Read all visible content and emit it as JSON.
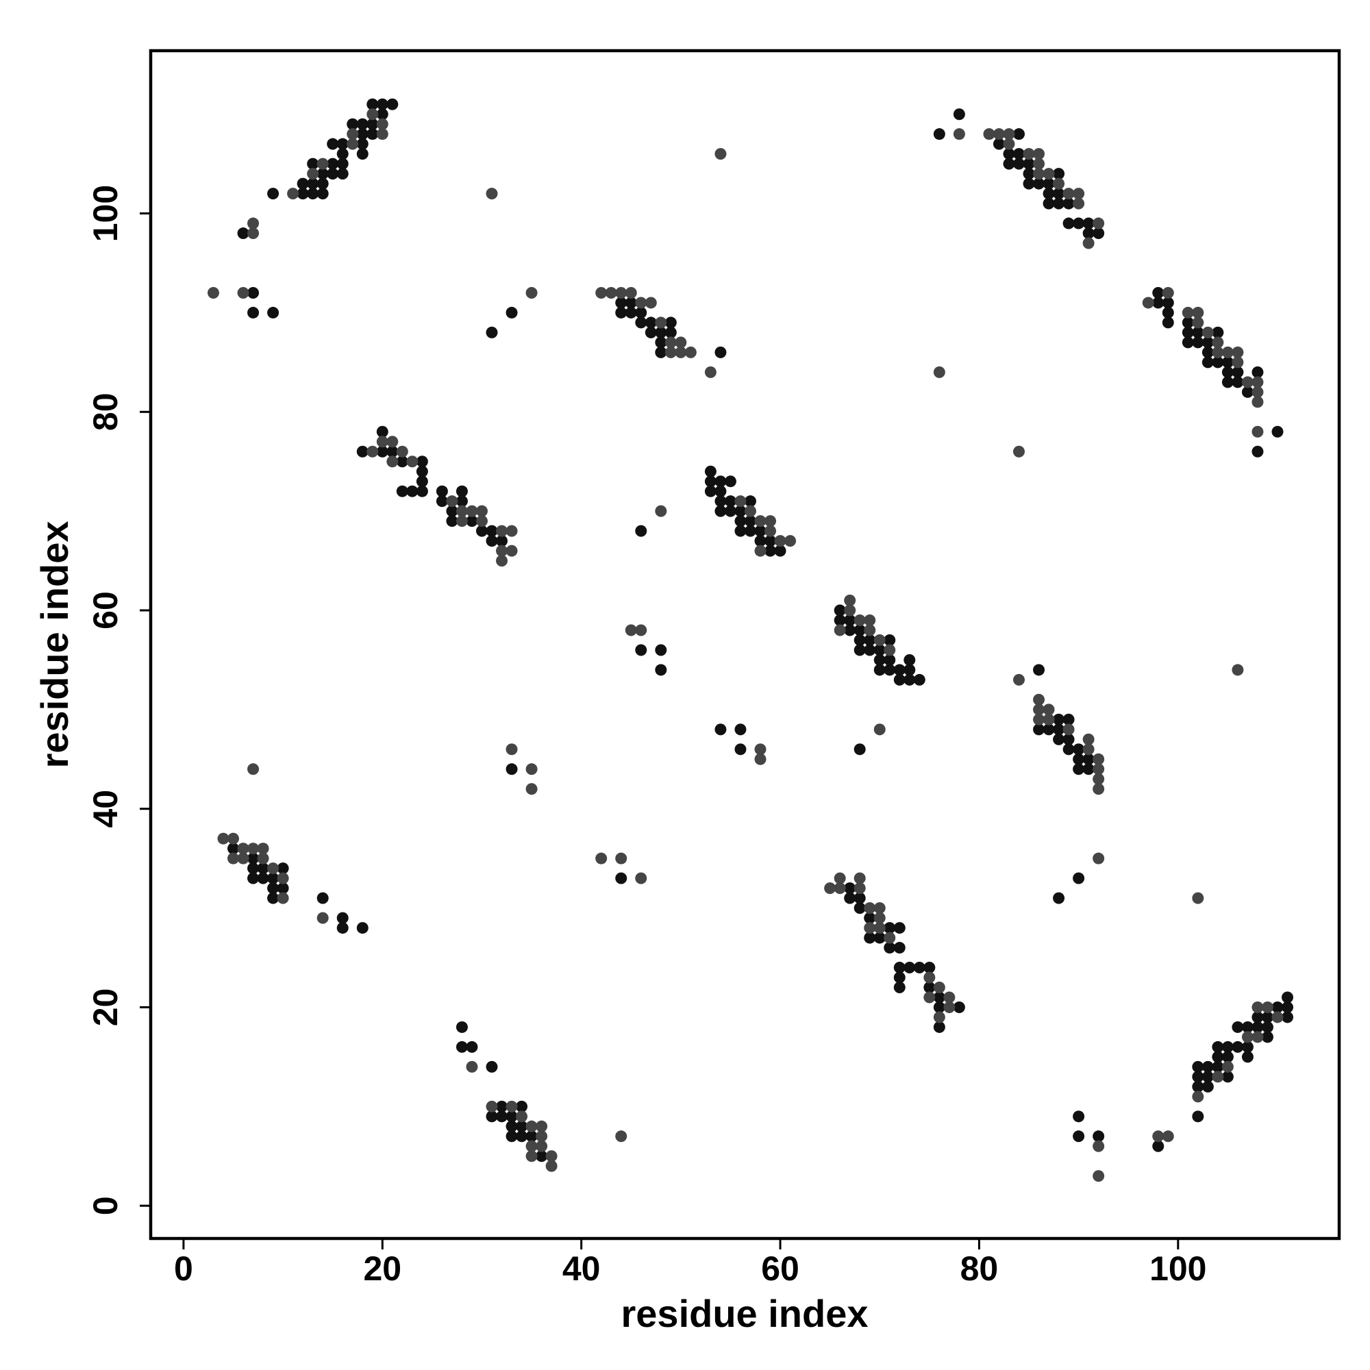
{
  "chart_data": {
    "type": "scatter",
    "xlabel": "residue index",
    "ylabel": "residue index",
    "xlim": [
      -3.3,
      116.2
    ],
    "ylim": [
      -3.3,
      116.4
    ],
    "xticks": [
      0,
      20,
      40,
      60,
      80,
      100
    ],
    "yticks": [
      0,
      20,
      40,
      60,
      80,
      100
    ],
    "grid": false,
    "series": [
      {
        "color": "#111111",
        "x": [
          102,
          102,
          102,
          102,
          103,
          103,
          103,
          104,
          104,
          104,
          105,
          105,
          105,
          106,
          106,
          107,
          107,
          107,
          108,
          108,
          109,
          109,
          109,
          110,
          111,
          111,
          111,
          9,
          12,
          13,
          14,
          12,
          13,
          14,
          14,
          15,
          16,
          13,
          15,
          16,
          16,
          18,
          15,
          16,
          18,
          18,
          19,
          17,
          18,
          19,
          20,
          19,
          20,
          21,
          5,
          7,
          7,
          7,
          8,
          8,
          9,
          9,
          9,
          10,
          10,
          14,
          16,
          16,
          18,
          36,
          35,
          34,
          33,
          34,
          33,
          33,
          32,
          31,
          34,
          32,
          31,
          29,
          28,
          28,
          18,
          20,
          20,
          21,
          22,
          22,
          23,
          24,
          24,
          24,
          24,
          26,
          26,
          27,
          27,
          28,
          28,
          29,
          30,
          31,
          31,
          32,
          76,
          78,
          76,
          76,
          75,
          72,
          72,
          75,
          74,
          73,
          72,
          72,
          71,
          70,
          69,
          72,
          71,
          69,
          68,
          68,
          67,
          67,
          44,
          44,
          45,
          45,
          46,
          46,
          47,
          47,
          48,
          48,
          48,
          49,
          49,
          54,
          91,
          90,
          91,
          90,
          90,
          89,
          89,
          88,
          88,
          87,
          86,
          89,
          88,
          86,
          53,
          53,
          53,
          54,
          54,
          54,
          54,
          55,
          55,
          55,
          56,
          56,
          56,
          57,
          57,
          57,
          58,
          58,
          59,
          59,
          60,
          74,
          73,
          72,
          73,
          72,
          71,
          70,
          73,
          71,
          70,
          70,
          69,
          68,
          71,
          69,
          68,
          68,
          67,
          67,
          66,
          66,
          98,
          98,
          99,
          99,
          99,
          101,
          101,
          101,
          102,
          102,
          103,
          103,
          103,
          104,
          104,
          105,
          105,
          105,
          106,
          106,
          107,
          108,
          108,
          110,
          92,
          91,
          91,
          90,
          89,
          89,
          88,
          87,
          88,
          87,
          87,
          86,
          85,
          88,
          85,
          85,
          84,
          83,
          84,
          83,
          82,
          84,
          76,
          78,
          46,
          48,
          48,
          54,
          56,
          56,
          7,
          7,
          9,
          92,
          90,
          90,
          98,
          6,
          31,
          33,
          88,
          90,
          33,
          44,
          46,
          68
        ],
        "values": [
          9,
          12,
          13,
          14,
          12,
          13,
          14,
          14,
          15,
          16,
          13,
          15,
          16,
          16,
          18,
          15,
          16,
          18,
          18,
          19,
          17,
          18,
          19,
          20,
          19,
          20,
          21,
          102,
          102,
          102,
          102,
          103,
          103,
          103,
          104,
          104,
          104,
          105,
          105,
          105,
          106,
          106,
          107,
          107,
          107,
          108,
          108,
          109,
          109,
          109,
          110,
          111,
          111,
          111,
          36,
          35,
          34,
          33,
          34,
          33,
          33,
          32,
          31,
          34,
          32,
          31,
          29,
          28,
          28,
          5,
          7,
          7,
          7,
          8,
          8,
          9,
          9,
          9,
          10,
          10,
          14,
          16,
          16,
          18,
          76,
          78,
          76,
          76,
          75,
          72,
          72,
          75,
          74,
          73,
          72,
          72,
          71,
          70,
          69,
          72,
          71,
          69,
          68,
          68,
          67,
          67,
          18,
          20,
          20,
          21,
          22,
          22,
          23,
          24,
          24,
          24,
          24,
          26,
          26,
          27,
          27,
          28,
          28,
          29,
          30,
          31,
          31,
          32,
          91,
          90,
          91,
          90,
          90,
          89,
          89,
          88,
          88,
          87,
          86,
          89,
          88,
          86,
          44,
          44,
          45,
          45,
          46,
          46,
          47,
          47,
          48,
          48,
          48,
          49,
          49,
          54,
          74,
          73,
          72,
          73,
          72,
          71,
          70,
          73,
          71,
          70,
          70,
          69,
          68,
          71,
          69,
          68,
          68,
          67,
          67,
          66,
          66,
          53,
          53,
          53,
          54,
          54,
          54,
          54,
          55,
          55,
          55,
          56,
          56,
          56,
          57,
          57,
          57,
          58,
          58,
          59,
          59,
          60,
          92,
          91,
          91,
          90,
          89,
          89,
          88,
          87,
          88,
          87,
          87,
          86,
          85,
          88,
          85,
          85,
          84,
          83,
          84,
          83,
          82,
          84,
          76,
          78,
          98,
          98,
          99,
          99,
          99,
          101,
          101,
          101,
          102,
          102,
          103,
          103,
          103,
          104,
          104,
          105,
          105,
          105,
          106,
          106,
          107,
          108,
          108,
          110,
          56,
          56,
          54,
          48,
          48,
          46,
          92,
          90,
          90,
          7,
          7,
          9,
          6,
          98,
          88,
          90,
          31,
          33,
          44,
          33,
          68,
          46
        ]
      },
      {
        "color": "#454545",
        "x": [
          102,
          104,
          105,
          107,
          108,
          108,
          109,
          110,
          11,
          13,
          14,
          17,
          17,
          20,
          20,
          19,
          4,
          5,
          5,
          6,
          6,
          7,
          8,
          8,
          9,
          10,
          10,
          14,
          37,
          37,
          35,
          36,
          35,
          36,
          36,
          35,
          34,
          33,
          31,
          29,
          19,
          20,
          21,
          21,
          22,
          23,
          27,
          28,
          28,
          29,
          30,
          30,
          32,
          32,
          32,
          33,
          33,
          76,
          77,
          77,
          75,
          76,
          75,
          71,
          70,
          69,
          70,
          70,
          69,
          68,
          66,
          65,
          68,
          66,
          42,
          43,
          44,
          45,
          46,
          47,
          48,
          49,
          49,
          50,
          50,
          51,
          53,
          92,
          92,
          92,
          92,
          91,
          91,
          89,
          87,
          86,
          87,
          86,
          86,
          84,
          56,
          57,
          58,
          58,
          59,
          59,
          60,
          61,
          71,
          70,
          69,
          66,
          69,
          68,
          67,
          67,
          97,
          99,
          101,
          102,
          102,
          103,
          104,
          104,
          105,
          106,
          106,
          107,
          108,
          108,
          108,
          108,
          91,
          92,
          90,
          90,
          89,
          88,
          87,
          86,
          86,
          86,
          85,
          83,
          83,
          82,
          81,
          78,
          45,
          46,
          58,
          58,
          3,
          6,
          92,
          92,
          98,
          99,
          7,
          7,
          7,
          44,
          31,
          102,
          35,
          92,
          33,
          35,
          35,
          46,
          44,
          42,
          48,
          70,
          54,
          106,
          76,
          84
        ],
        "values": [
          11,
          13,
          14,
          17,
          17,
          20,
          20,
          19,
          102,
          104,
          105,
          107,
          108,
          108,
          109,
          110,
          37,
          37,
          35,
          36,
          35,
          36,
          36,
          35,
          34,
          33,
          31,
          29,
          4,
          5,
          5,
          6,
          6,
          7,
          8,
          8,
          9,
          10,
          10,
          14,
          76,
          77,
          77,
          75,
          76,
          75,
          71,
          70,
          69,
          70,
          70,
          69,
          68,
          66,
          65,
          68,
          66,
          19,
          20,
          21,
          21,
          22,
          23,
          27,
          28,
          28,
          29,
          30,
          30,
          32,
          32,
          32,
          33,
          33,
          92,
          92,
          92,
          92,
          91,
          91,
          89,
          87,
          86,
          87,
          86,
          86,
          84,
          42,
          43,
          44,
          45,
          46,
          47,
          48,
          49,
          49,
          50,
          50,
          51,
          53,
          71,
          70,
          69,
          66,
          69,
          68,
          67,
          67,
          56,
          57,
          58,
          58,
          59,
          59,
          60,
          61,
          91,
          92,
          90,
          90,
          89,
          88,
          87,
          86,
          86,
          86,
          85,
          83,
          83,
          82,
          81,
          78,
          97,
          99,
          101,
          102,
          102,
          103,
          104,
          104,
          105,
          106,
          106,
          107,
          108,
          108,
          108,
          108,
          58,
          58,
          46,
          45,
          92,
          92,
          3,
          6,
          7,
          7,
          98,
          99,
          44,
          7,
          102,
          31,
          92,
          35,
          46,
          44,
          42,
          33,
          35,
          35,
          70,
          48,
          106,
          54,
          84,
          76
        ]
      }
    ]
  }
}
